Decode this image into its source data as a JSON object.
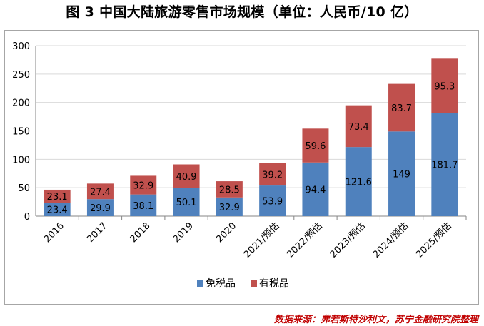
{
  "title": "图 3 中国大陆旅游零售市场规模（单位：人民币/10 亿）",
  "source": "数据来源：弗若斯特沙利文，苏宁金融研究院整理",
  "colors": {
    "duty_free": "#4f81bd",
    "duty_paid": "#c0504d",
    "grid": "#d9d9d9",
    "axis": "#868686"
  },
  "chart_data": {
    "type": "bar",
    "stacked": true,
    "categories": [
      "2016",
      "2017",
      "2018",
      "2019",
      "2020",
      "2021/预估",
      "2022/预估",
      "2023/预估",
      "2024/预估",
      "2025/预估"
    ],
    "series": [
      {
        "name": "免税品",
        "values": [
          23.4,
          29.9,
          38.1,
          50.1,
          32.9,
          53.9,
          94.4,
          121.6,
          149,
          181.7
        ]
      },
      {
        "name": "有税品",
        "values": [
          23.1,
          27.4,
          32.9,
          40.9,
          28.5,
          39.2,
          59.6,
          73.4,
          83.7,
          95.3
        ]
      }
    ],
    "data_labels": [
      [
        "23.4",
        "29.9",
        "38.1",
        "50.1",
        "32.9",
        "53.9",
        "94.4",
        "121.6",
        "149",
        "181.7"
      ],
      [
        "23.1",
        "27.4",
        "32.9",
        "40.9",
        "28.5",
        "39.2",
        "59.6",
        "73.4",
        "83.7",
        "95.3"
      ]
    ],
    "ylim": [
      0,
      300
    ],
    "yticks": [
      0,
      50,
      100,
      150,
      200,
      250,
      300
    ],
    "grid": true,
    "legend": "bottom"
  }
}
